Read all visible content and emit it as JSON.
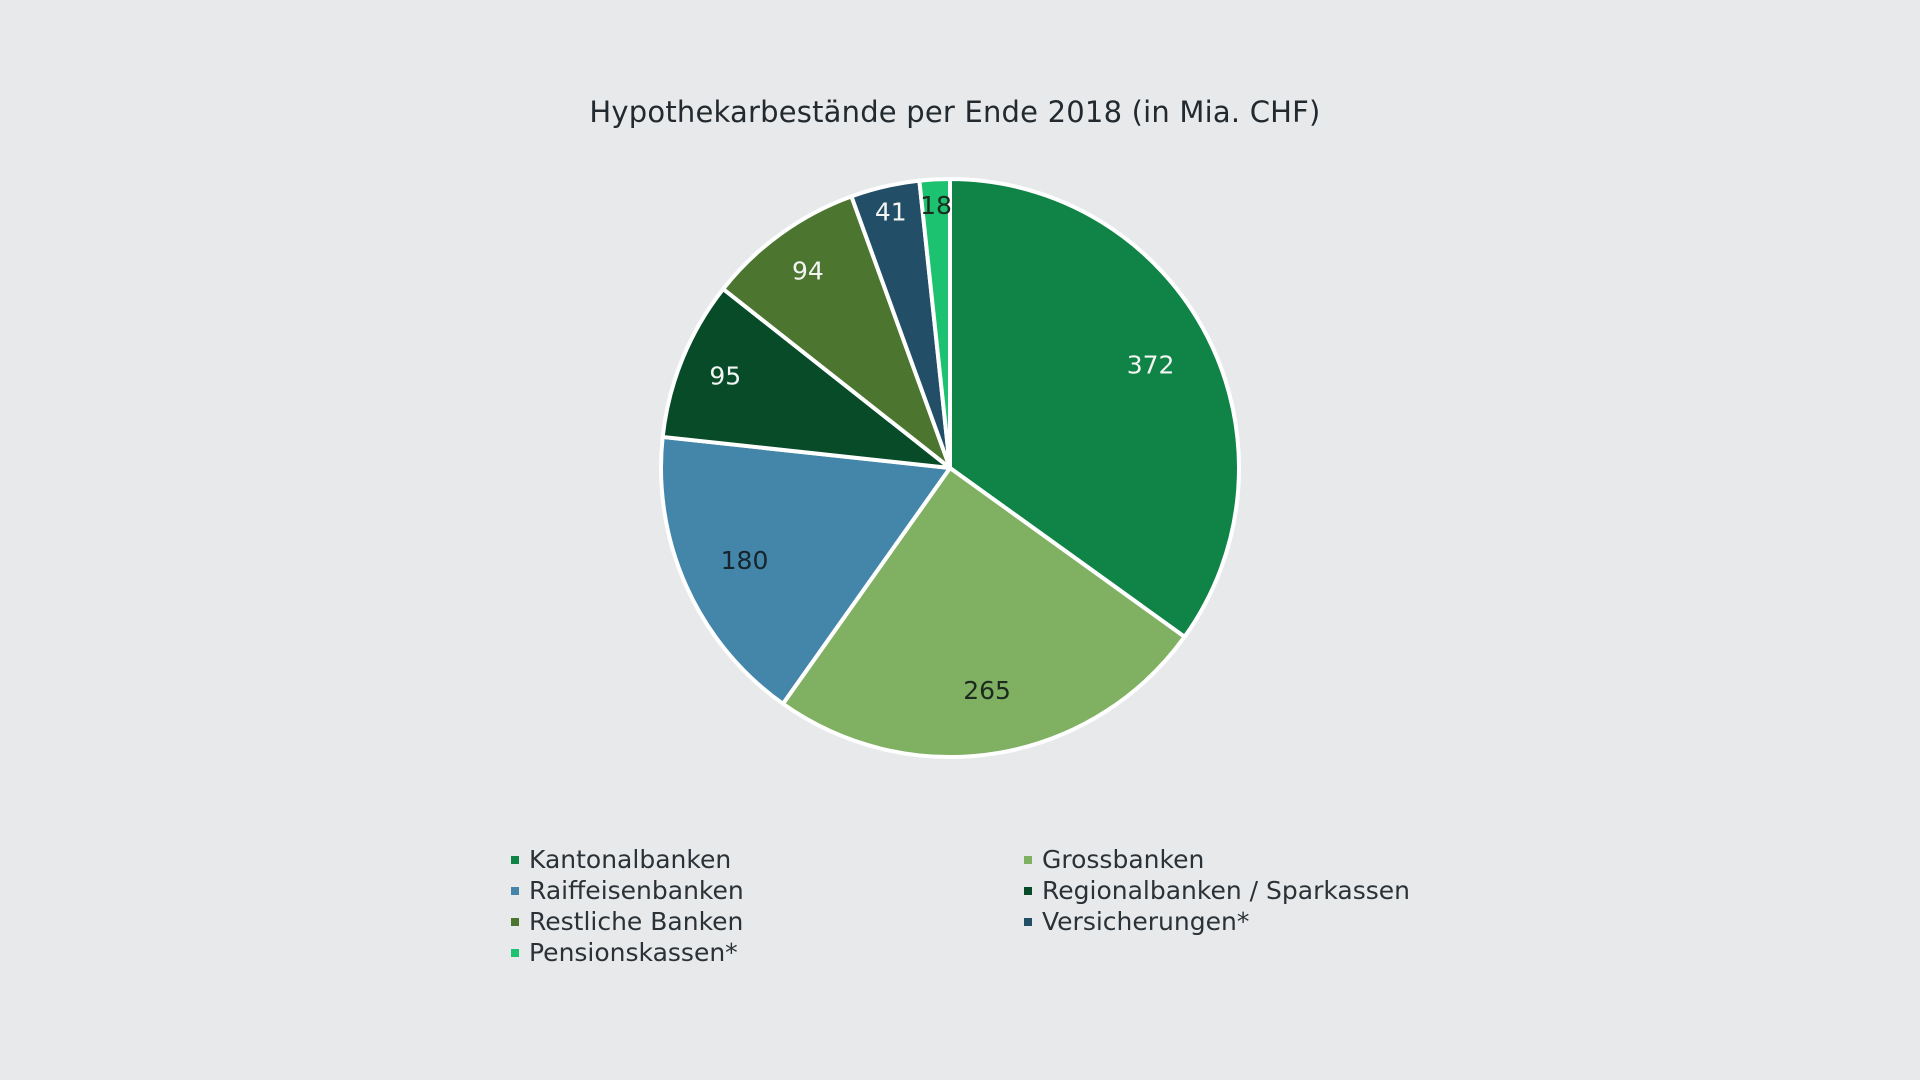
{
  "chart_data": {
    "type": "pie",
    "title": "Hypothekarbestände per Ende 2018 (in Mia. CHF)",
    "slices": [
      {
        "name": "Kantonalbanken",
        "value": 372,
        "label": "372",
        "color": "#108347",
        "label_color": "#f2f5f2"
      },
      {
        "name": "Grossbanken",
        "value": 265,
        "label": "265",
        "color": "#80b062",
        "label_color": "#1d2a20"
      },
      {
        "name": "Raiffeisenbanken",
        "value": 180,
        "label": "180",
        "color": "#4486aa",
        "label_color": "#16242c"
      },
      {
        "name": "Regionalbanken / Sparkassen",
        "value": 95,
        "label": "95",
        "color": "#074b29",
        "label_color": "#f2f5f2"
      },
      {
        "name": "Restliche Banken",
        "value": 94,
        "label": "94",
        "color": "#4c7530",
        "label_color": "#f2f5f2"
      },
      {
        "name": "Versicherungen*",
        "value": 41,
        "label": "41",
        "color": "#224e68",
        "label_color": "#f2f5f2"
      },
      {
        "name": "Pensionskassen*",
        "value": 18,
        "label": "18",
        "color": "#1dc271",
        "label_color": "#1d2a20"
      }
    ],
    "slice_order_clockwise": [
      "Kantonalbanken",
      "Grossbanken",
      "Raiffeisenbanken",
      "Regionalbanken / Sparkassen",
      "Restliche Banken",
      "Versicherungen*",
      "Pensionskassen*"
    ],
    "start_angle": "12 o'clock",
    "direction": "clockwise",
    "legend": {
      "placement": "bottom",
      "columns": 2,
      "entries": [
        {
          "label": "Kantonalbanken",
          "color": "#108347"
        },
        {
          "label": "Grossbanken",
          "color": "#80b062"
        },
        {
          "label": "Raiffeisenbanken",
          "color": "#4486aa"
        },
        {
          "label": "Regionalbanken / Sparkassen",
          "color": "#074b29"
        },
        {
          "label": "Restliche Banken",
          "color": "#4c7530"
        },
        {
          "label": "Versicherungen*",
          "color": "#224e68"
        },
        {
          "label": "Pensionskassen*",
          "color": "#1dc271"
        }
      ]
    }
  },
  "colors": {
    "background": "#e8e9ea",
    "slice_separator": "#ffffff"
  }
}
